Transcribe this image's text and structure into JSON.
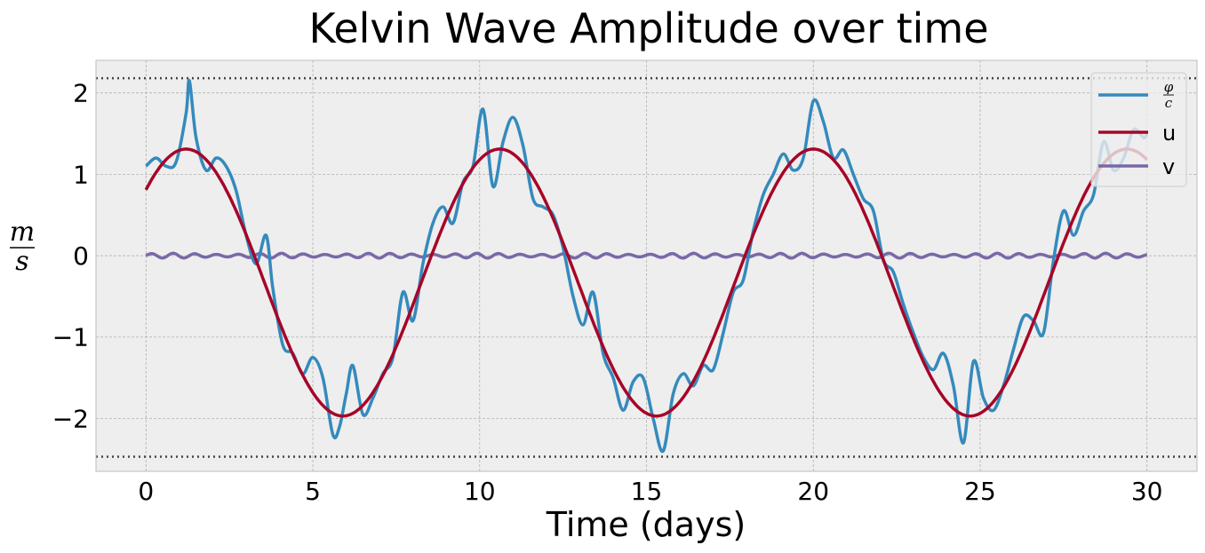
{
  "chart_data": {
    "type": "line",
    "title": "Kelvin Wave Amplitude over time",
    "xlabel": "Time (days)",
    "ylabel": {
      "numerator": "m",
      "denominator": "s"
    },
    "xlim": [
      -1.5,
      31.5
    ],
    "ylim": [
      -2.65,
      2.4
    ],
    "xticks": [
      0,
      5,
      10,
      15,
      20,
      25,
      30
    ],
    "yticks": [
      -2,
      -1,
      0,
      1,
      2
    ],
    "ytick_labels": [
      "−2",
      "−1",
      "0",
      "1",
      "2"
    ],
    "grid": true,
    "legend_position": "top-right",
    "hlines": [
      2.18,
      -2.47
    ],
    "series": [
      {
        "name": "φ/c",
        "legend_fraction": {
          "numerator": "φ",
          "denominator": "c"
        },
        "color": "#348ABD",
        "x": [
          0,
          0.3,
          0.6,
          0.9,
          1.2,
          1.3,
          1.5,
          1.8,
          2.1,
          2.4,
          2.7,
          3.0,
          3.3,
          3.6,
          3.8,
          4.1,
          4.4,
          4.7,
          5.0,
          5.3,
          5.6,
          5.8,
          6.0,
          6.2,
          6.5,
          6.8,
          7.1,
          7.4,
          7.7,
          8.0,
          8.3,
          8.6,
          8.9,
          9.2,
          9.5,
          9.8,
          10.1,
          10.4,
          10.7,
          11.0,
          11.3,
          11.6,
          11.9,
          12.2,
          12.5,
          12.8,
          13.1,
          13.4,
          13.7,
          14.0,
          14.3,
          14.6,
          14.9,
          15.2,
          15.5,
          15.8,
          16.1,
          16.4,
          16.7,
          17.0,
          17.3,
          17.6,
          17.9,
          18.2,
          18.5,
          18.8,
          19.1,
          19.4,
          19.7,
          20.0,
          20.3,
          20.6,
          20.9,
          21.2,
          21.5,
          21.8,
          22.1,
          22.4,
          22.7,
          23.0,
          23.3,
          23.6,
          23.9,
          24.2,
          24.5,
          24.8,
          25.1,
          25.4,
          25.7,
          26.0,
          26.3,
          26.6,
          26.9,
          27.2,
          27.5,
          27.8,
          28.1,
          28.4,
          28.7,
          29.0,
          29.3,
          29.6,
          29.9,
          30.0
        ],
        "values": [
          1.1,
          1.2,
          1.1,
          1.15,
          1.75,
          2.15,
          1.45,
          1.05,
          1.2,
          1.1,
          0.8,
          0.25,
          -0.1,
          0.25,
          -0.4,
          -1.1,
          -1.2,
          -1.45,
          -1.25,
          -1.5,
          -2.2,
          -2.1,
          -1.7,
          -1.35,
          -1.95,
          -1.75,
          -1.45,
          -1.25,
          -0.45,
          -0.8,
          -0.1,
          0.4,
          0.6,
          0.4,
          0.9,
          1.1,
          1.8,
          0.85,
          1.4,
          1.7,
          1.35,
          0.7,
          0.6,
          0.5,
          0.1,
          -0.5,
          -0.85,
          -0.45,
          -1.2,
          -1.5,
          -1.9,
          -1.55,
          -1.5,
          -2.0,
          -2.4,
          -1.7,
          -1.45,
          -1.6,
          -1.35,
          -1.4,
          -0.95,
          -0.45,
          -0.3,
          0.3,
          0.75,
          1.0,
          1.25,
          1.05,
          1.2,
          1.9,
          1.65,
          1.2,
          1.3,
          1.0,
          0.7,
          0.55,
          -0.05,
          -0.2,
          -0.6,
          -0.95,
          -1.25,
          -1.4,
          -1.2,
          -1.6,
          -2.3,
          -1.3,
          -1.75,
          -1.9,
          -1.6,
          -1.15,
          -0.75,
          -0.8,
          -0.95,
          -0.05,
          0.55,
          0.25,
          0.55,
          0.75,
          1.4,
          1.05,
          1.2,
          1.55,
          1.45,
          1.5
        ]
      },
      {
        "name": "u",
        "color": "#A60628",
        "amplitude": 1.64,
        "offset": -0.33,
        "period_days": 9.4,
        "peak_day": 1.2,
        "x_range": [
          0,
          30
        ]
      },
      {
        "name": "v",
        "color": "#7A68A6",
        "amplitude": 0.03,
        "offset": 0.0,
        "period_days": 0.65,
        "x_range": [
          0,
          30
        ]
      }
    ]
  }
}
